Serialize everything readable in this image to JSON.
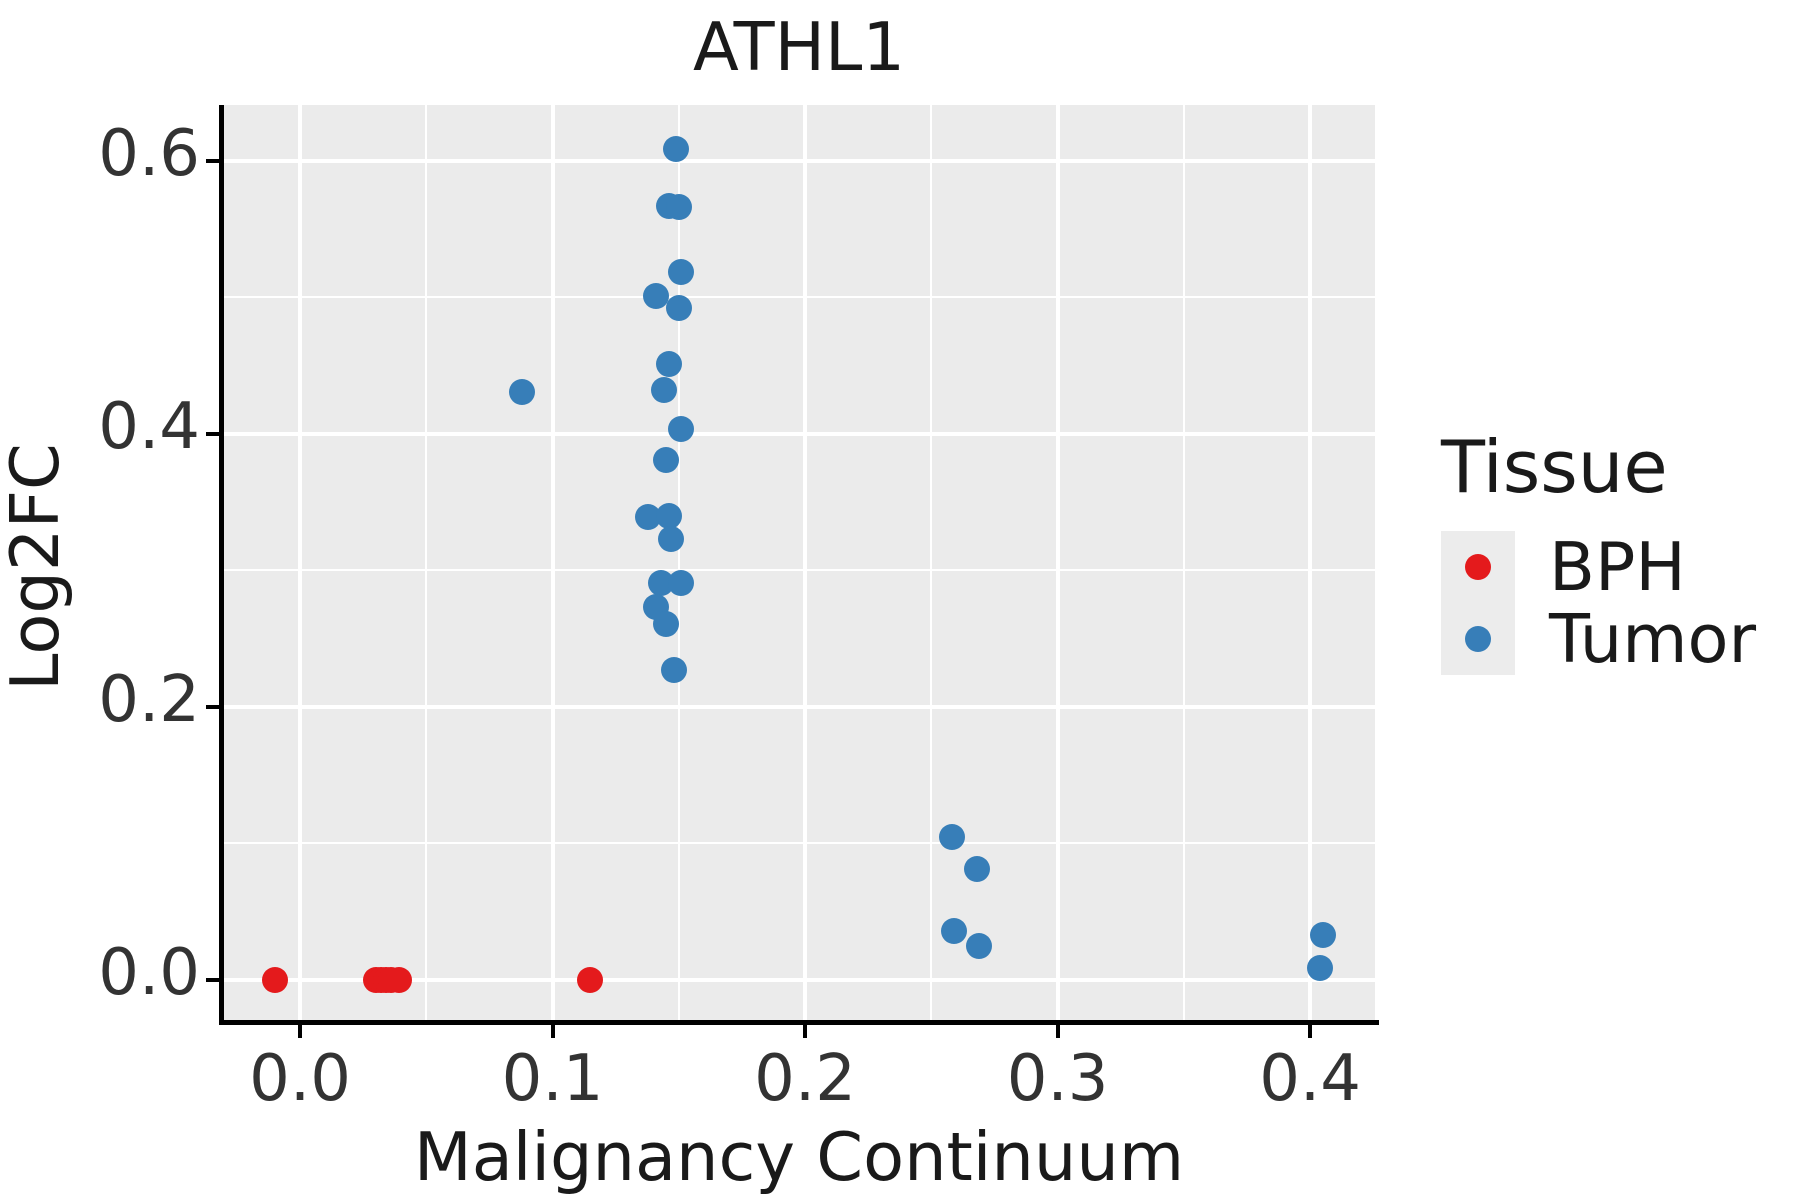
{
  "title": "ATHL1",
  "chart_data": {
    "type": "scatter",
    "title": "ATHL1",
    "xlabel": "Malignancy Continuum",
    "ylabel": "Log2FC",
    "xlim": [
      -0.0305,
      0.4257
    ],
    "ylim": [
      -0.0308,
      0.641
    ],
    "x_major_ticks": [
      0.0,
      0.1,
      0.2,
      0.3,
      0.4
    ],
    "x_tick_labels": [
      "0.0",
      "0.1",
      "0.2",
      "0.3",
      "0.4"
    ],
    "x_minor_ticks": [
      0.05,
      0.15,
      0.25,
      0.35
    ],
    "y_major_ticks": [
      0.0,
      0.2,
      0.4,
      0.6
    ],
    "y_tick_labels": [
      "0.0",
      "0.2",
      "0.4",
      "0.6"
    ],
    "y_minor_ticks": [
      0.1,
      0.3,
      0.5
    ],
    "grid": true,
    "legend_position": "right",
    "series": [
      {
        "name": "BPH",
        "color": "#E41A1C",
        "points": [
          [
            -0.01,
            0.0
          ],
          [
            0.03,
            0.0
          ],
          [
            0.032,
            0.0
          ],
          [
            0.034,
            0.0
          ],
          [
            0.036,
            0.0
          ],
          [
            0.039,
            0.0
          ],
          [
            0.115,
            0.0
          ]
        ]
      },
      {
        "name": "Tumor",
        "color": "#377EB8",
        "points": [
          [
            0.149,
            0.609
          ],
          [
            0.146,
            0.567
          ],
          [
            0.15,
            0.566
          ],
          [
            0.151,
            0.519
          ],
          [
            0.141,
            0.501
          ],
          [
            0.15,
            0.492
          ],
          [
            0.146,
            0.451
          ],
          [
            0.144,
            0.432
          ],
          [
            0.088,
            0.431
          ],
          [
            0.151,
            0.404
          ],
          [
            0.145,
            0.381
          ],
          [
            0.138,
            0.339
          ],
          [
            0.146,
            0.34
          ],
          [
            0.147,
            0.323
          ],
          [
            0.143,
            0.291
          ],
          [
            0.151,
            0.291
          ],
          [
            0.141,
            0.273
          ],
          [
            0.145,
            0.261
          ],
          [
            0.148,
            0.227
          ],
          [
            0.258,
            0.105
          ],
          [
            0.268,
            0.081
          ],
          [
            0.259,
            0.036
          ],
          [
            0.269,
            0.025
          ],
          [
            0.405,
            0.033
          ],
          [
            0.404,
            0.009
          ]
        ]
      }
    ]
  },
  "legend": {
    "title": "Tissue",
    "items": [
      {
        "label": "BPH",
        "color": "#E41A1C"
      },
      {
        "label": "Tumor",
        "color": "#377EB8"
      }
    ]
  },
  "colors": {
    "panel_bg": "#EBEBEB",
    "grid": "#FFFFFF",
    "axis_line": "#000000",
    "tick_text": "#333333",
    "text": "#1A1A1A",
    "legend_key_bg": "#ECECEC"
  }
}
